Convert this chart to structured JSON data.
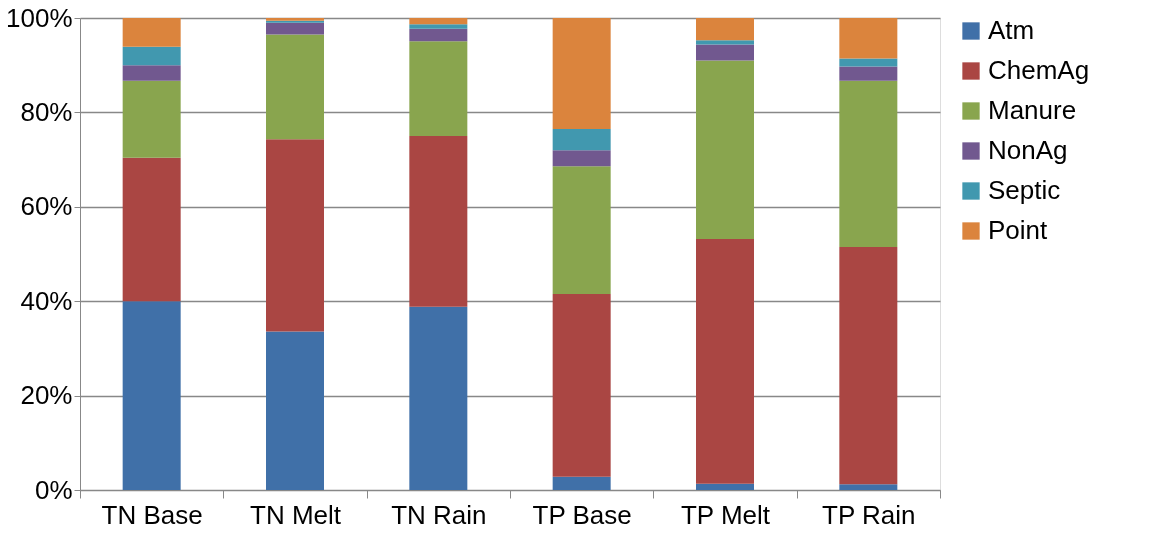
{
  "chart_data": {
    "type": "bar",
    "stacked": true,
    "categories": [
      "TN Base",
      "TN Melt",
      "TN Rain",
      "TP Base",
      "TP Melt",
      "TP Rain"
    ],
    "series": [
      {
        "name": "Atm",
        "color": "#4070a8",
        "values": [
          40.0,
          33.6,
          38.8,
          2.8,
          1.3,
          1.2
        ]
      },
      {
        "name": "ChemAg",
        "color": "#aa4643",
        "values": [
          30.4,
          40.7,
          36.2,
          38.7,
          51.9,
          50.3
        ]
      },
      {
        "name": "Manure",
        "color": "#89a54e",
        "values": [
          16.3,
          22.2,
          20.1,
          27.1,
          37.8,
          35.2
        ]
      },
      {
        "name": "NonAg",
        "color": "#71588f",
        "values": [
          3.3,
          2.5,
          2.6,
          3.4,
          3.4,
          3.0
        ]
      },
      {
        "name": "Septic",
        "color": "#4198af",
        "values": [
          3.9,
          0.4,
          1.0,
          4.5,
          0.9,
          1.7
        ]
      },
      {
        "name": "Point",
        "color": "#db843d",
        "values": [
          6.1,
          0.6,
          1.3,
          23.5,
          4.7,
          8.6
        ]
      }
    ],
    "ylim": [
      0,
      100
    ],
    "yticks": [
      {
        "value": 0,
        "label": "0%"
      },
      {
        "value": 20,
        "label": "20%"
      },
      {
        "value": 40,
        "label": "40%"
      },
      {
        "value": 60,
        "label": "60%"
      },
      {
        "value": 80,
        "label": "80%"
      },
      {
        "value": 100,
        "label": "100%"
      }
    ],
    "grid": "y",
    "legend": "right"
  }
}
